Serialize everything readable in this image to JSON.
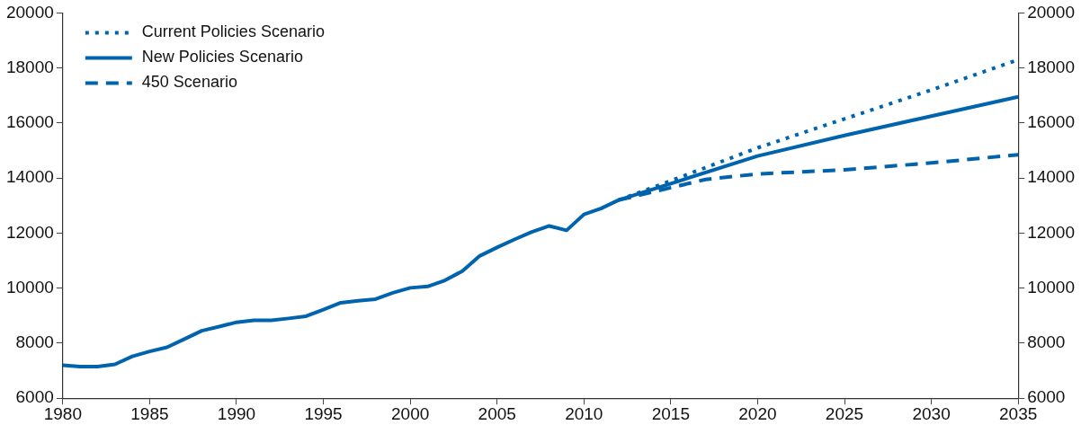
{
  "chart_data": {
    "type": "line",
    "xlim": [
      1980,
      2035
    ],
    "xticks": [
      1980,
      1985,
      1990,
      1995,
      2000,
      2005,
      2010,
      2015,
      2020,
      2025,
      2030,
      2035
    ],
    "ylim": [
      6000,
      20000
    ],
    "yticks": [
      6000,
      8000,
      10000,
      12000,
      14000,
      16000,
      18000,
      20000
    ],
    "y2lim": [
      6000,
      20000
    ],
    "y2ticks": [
      6000,
      8000,
      10000,
      12000,
      14000,
      16000,
      18000,
      20000
    ],
    "grid": false,
    "legend": "top left",
    "series": [
      {
        "name": "Current Policies Scenario",
        "color": "#0063ae",
        "line_style": "dotted",
        "x": [
          2012,
          2015,
          2020,
          2025,
          2030,
          2035
        ],
        "values": [
          13200,
          13900,
          15100,
          16150,
          17200,
          18300
        ]
      },
      {
        "name": "New Policies Scenario",
        "color": "#0063ae",
        "line_style": "solid",
        "x": [
          1980,
          1981,
          1982,
          1983,
          1984,
          1985,
          1986,
          1987,
          1988,
          1989,
          1990,
          1991,
          1992,
          1993,
          1994,
          1995,
          1996,
          1997,
          1998,
          1999,
          2000,
          2001,
          2002,
          2003,
          2004,
          2005,
          2006,
          2007,
          2008,
          2009,
          2010,
          2011,
          2012,
          2015,
          2020,
          2025,
          2030,
          2035
        ],
        "values": [
          7200,
          7150,
          7150,
          7230,
          7520,
          7700,
          7850,
          8150,
          8450,
          8600,
          8760,
          8830,
          8830,
          8900,
          8980,
          9220,
          9470,
          9540,
          9600,
          9830,
          10010,
          10060,
          10280,
          10620,
          11170,
          11480,
          11770,
          12040,
          12260,
          12100,
          12680,
          12900,
          13200,
          13800,
          14800,
          15550,
          16250,
          16950
        ]
      },
      {
        "name": "450 Scenario",
        "color": "#0063ae",
        "line_style": "dashed",
        "x": [
          2012,
          2015,
          2017,
          2020,
          2025,
          2030,
          2035
        ],
        "values": [
          13200,
          13650,
          13950,
          14150,
          14300,
          14550,
          14850
        ]
      }
    ]
  }
}
